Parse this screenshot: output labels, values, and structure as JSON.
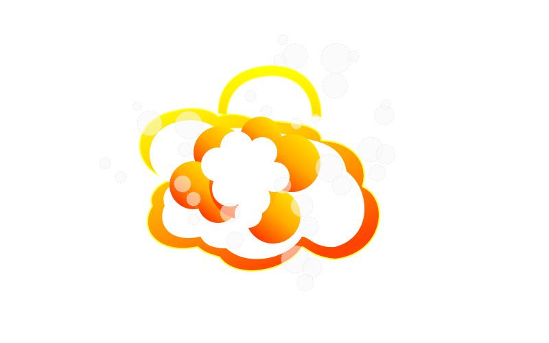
{
  "illustration": {
    "subject": "explosion-cloud",
    "colors": {
      "background": "#ffffff",
      "yellow": "#ffff00",
      "gold": "#ffcc00",
      "orange": "#ff8800",
      "red_orange": "#ff4400",
      "outline": "#ffff33",
      "smoke": "#f7f7f7",
      "smoke_edge": "#dcdcdc"
    }
  }
}
